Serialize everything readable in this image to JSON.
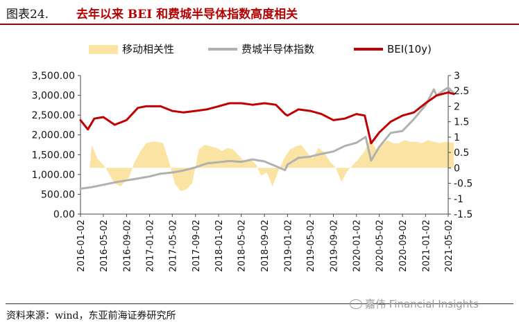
{
  "figure": {
    "label": "图表24.",
    "title": "去年以来 BEI 和费城半导体指数高度相关"
  },
  "footer": {
    "source": "资料来源：wind，东亚前海证券研究所",
    "watermark": "嘉伟 Financial Insights"
  },
  "chart_data": {
    "type": "line",
    "title": "",
    "xlabel": "",
    "ylabel": "",
    "legend": {
      "placement": "top",
      "entries": [
        "移动相关性",
        "费城半导体指数",
        "BEI(10y)"
      ]
    },
    "colors": {
      "correlation": "#fbe3a3",
      "sox": "#b0b0b0",
      "bei": "#c00000"
    },
    "x_ticks": [
      "2016-01-02",
      "2016-05-02",
      "2016-09-02",
      "2017-01-02",
      "2017-05-02",
      "2017-09-02",
      "2018-01-02",
      "2018-05-02",
      "2018-09-02",
      "2019-01-02",
      "2019-05-02",
      "2019-09-02",
      "2020-01-02",
      "2020-05-02",
      "2020-09-02",
      "2021-01-02",
      "2021-05-02"
    ],
    "y_left": {
      "ticks": [
        "0.00",
        "500.00",
        "1,000.00",
        "1,500.00",
        "2,000.00",
        "2,500.00",
        "3,000.00",
        "3,500.00"
      ],
      "ylim": [
        0,
        3500
      ]
    },
    "y_right": {
      "ticks": [
        "-1.5",
        "-1",
        "-0.5",
        "0",
        "0.5",
        "1",
        "1.5",
        "2",
        "2.5",
        "3"
      ],
      "ylim": [
        -1.5,
        3
      ]
    },
    "series": [
      {
        "name": "移动相关性",
        "axis": "right",
        "kind": "area",
        "x": [
          "2016-01-02",
          "2016-02-20",
          "2016-03-01",
          "2016-04-01",
          "2016-05-15",
          "2016-06-01",
          "2016-07-01",
          "2016-08-01",
          "2016-09-15",
          "2016-10-15",
          "2016-11-15",
          "2016-12-15",
          "2017-01-15",
          "2017-02-15",
          "2017-03-15",
          "2017-04-15",
          "2017-05-15",
          "2017-06-15",
          "2017-07-15",
          "2017-08-15",
          "2017-09-01",
          "2017-09-20",
          "2017-10-20",
          "2017-11-20",
          "2017-12-20",
          "2018-01-20",
          "2018-02-20",
          "2018-03-20",
          "2018-04-20",
          "2018-05-20",
          "2018-06-20",
          "2018-07-20",
          "2018-08-15",
          "2018-09-15",
          "2018-10-15",
          "2018-11-15",
          "2018-12-15",
          "2019-01-15",
          "2019-02-15",
          "2019-03-15",
          "2019-04-15",
          "2019-05-15",
          "2019-06-15",
          "2019-07-15",
          "2019-08-15",
          "2019-09-15",
          "2019-10-15",
          "2019-11-15",
          "2019-12-15",
          "2020-01-15",
          "2020-02-15",
          "2020-03-15",
          "2020-04-15",
          "2020-05-15",
          "2020-06-15",
          "2020-07-15",
          "2020-08-15",
          "2020-09-15",
          "2020-10-15",
          "2020-11-15",
          "2020-12-15",
          "2021-01-15",
          "2021-02-15",
          "2021-03-15",
          "2021-04-15",
          "2021-05-15",
          "2021-06-01"
        ],
        "y": [
          0,
          0,
          0.75,
          0.3,
          0,
          -0.2,
          -0.5,
          -0.6,
          -0.3,
          0.2,
          0.55,
          0.8,
          0.85,
          0.85,
          0.8,
          0.2,
          -0.5,
          -0.75,
          -0.7,
          -0.5,
          0,
          0.6,
          0.75,
          0.7,
          0.65,
          0.55,
          0.65,
          0.6,
          0.4,
          0.2,
          0.3,
          0.1,
          -0.25,
          -0.15,
          -0.6,
          -0.1,
          0.3,
          0.6,
          0.7,
          0.75,
          0.5,
          0.3,
          0.65,
          0.5,
          0.2,
          0,
          -0.45,
          -0.1,
          0.1,
          0.3,
          0.55,
          0.95,
          0.6,
          0.75,
          0.9,
          0.8,
          0.8,
          0.9,
          0.85,
          0.85,
          0.8,
          0.9,
          0.85,
          0.8,
          0.85,
          0.82,
          0.82
        ]
      },
      {
        "name": "费城半导体指数",
        "axis": "left",
        "kind": "line",
        "x": [
          "2016-01-02",
          "2016-03-01",
          "2016-05-02",
          "2016-07-01",
          "2016-09-02",
          "2016-11-01",
          "2017-01-02",
          "2017-03-01",
          "2017-05-02",
          "2017-07-01",
          "2017-09-02",
          "2017-11-01",
          "2018-01-02",
          "2018-03-01",
          "2018-05-02",
          "2018-07-01",
          "2018-09-02",
          "2018-11-01",
          "2018-12-20",
          "2019-01-02",
          "2019-03-01",
          "2019-05-02",
          "2019-07-01",
          "2019-09-02",
          "2019-11-01",
          "2020-01-02",
          "2020-02-20",
          "2020-03-20",
          "2020-05-02",
          "2020-07-01",
          "2020-09-02",
          "2020-11-01",
          "2021-01-02",
          "2021-02-15",
          "2021-03-01",
          "2021-04-01",
          "2021-05-02",
          "2021-06-01"
        ],
        "y": [
          640,
          680,
          740,
          800,
          850,
          900,
          950,
          1020,
          1050,
          1100,
          1180,
          1280,
          1310,
          1340,
          1320,
          1380,
          1330,
          1210,
          1110,
          1250,
          1420,
          1450,
          1520,
          1580,
          1720,
          1800,
          1950,
          1350,
          1700,
          2050,
          2100,
          2400,
          2750,
          3150,
          3000,
          3100,
          3200,
          3050
        ]
      },
      {
        "name": "BEI(10y)",
        "axis": "right",
        "kind": "line",
        "x": [
          "2016-01-02",
          "2016-02-10",
          "2016-03-15",
          "2016-05-02",
          "2016-07-01",
          "2016-09-02",
          "2016-11-01",
          "2016-12-15",
          "2017-01-02",
          "2017-03-01",
          "2017-05-02",
          "2017-07-01",
          "2017-09-02",
          "2017-11-01",
          "2018-01-02",
          "2018-03-01",
          "2018-05-02",
          "2018-07-01",
          "2018-09-02",
          "2018-11-01",
          "2018-12-20",
          "2019-01-02",
          "2019-03-01",
          "2019-05-02",
          "2019-07-01",
          "2019-09-02",
          "2019-11-01",
          "2020-01-02",
          "2020-02-15",
          "2020-03-20",
          "2020-05-02",
          "2020-07-01",
          "2020-09-02",
          "2020-11-01",
          "2021-01-02",
          "2021-03-01",
          "2021-05-02",
          "2021-06-01"
        ],
        "y": [
          1.55,
          1.25,
          1.6,
          1.65,
          1.4,
          1.55,
          1.95,
          2.0,
          2.0,
          2.0,
          1.85,
          1.8,
          1.85,
          1.9,
          2.0,
          2.1,
          2.1,
          2.05,
          2.1,
          2.05,
          1.75,
          1.7,
          1.9,
          1.85,
          1.75,
          1.55,
          1.6,
          1.75,
          1.7,
          0.8,
          1.15,
          1.5,
          1.7,
          1.8,
          2.1,
          2.35,
          2.45,
          2.4
        ]
      }
    ]
  }
}
